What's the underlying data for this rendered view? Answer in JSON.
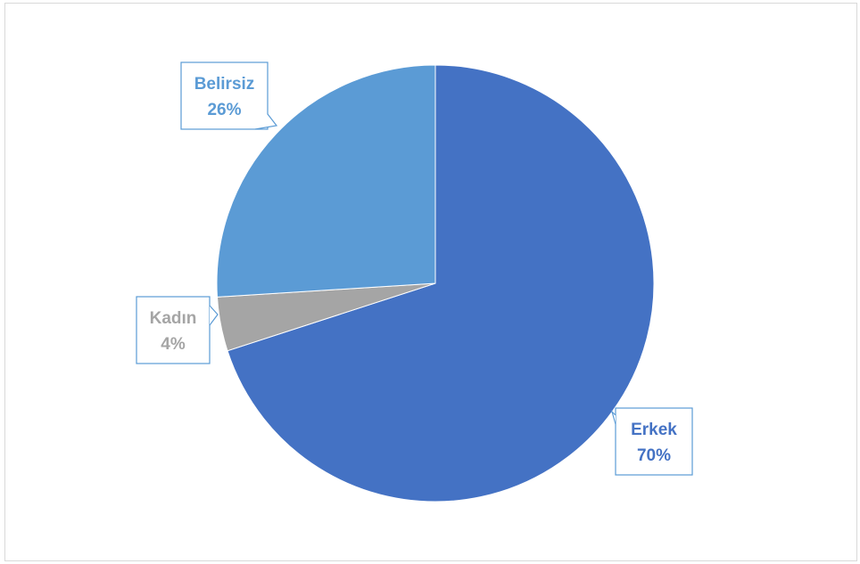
{
  "chart_data": {
    "type": "pie",
    "categories": [
      "Erkek",
      "Kadın",
      "Belirsiz"
    ],
    "values": [
      70,
      4,
      26
    ],
    "labels": [
      {
        "category": "Erkek",
        "percent": "70%"
      },
      {
        "category": "Kadın",
        "percent": "4%"
      },
      {
        "category": "Belirsiz",
        "percent": "26%"
      }
    ],
    "colors": [
      "#4472c4",
      "#a5a5a5",
      "#5b9bd5"
    ],
    "label_text_colors": [
      "#4472c4",
      "#a5a5a5",
      "#5b9bd5"
    ],
    "start_angle_deg": 0,
    "direction": "clockwise",
    "legend": "none"
  }
}
